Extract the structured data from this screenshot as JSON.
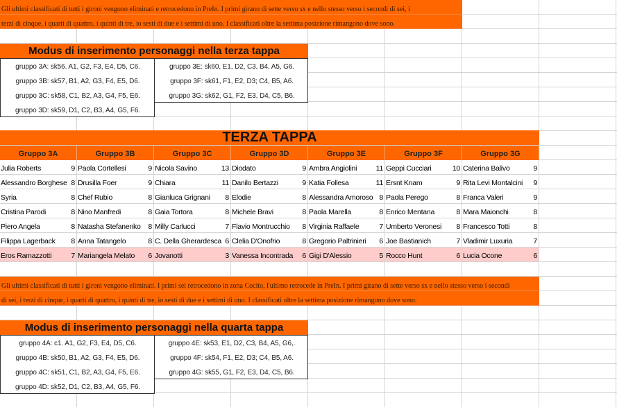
{
  "note1": [
    "Gli ultimi classificati di tutti i gironi vengono eliminati e retrocedono in PreIn. I primi girano di sette verso sx e nello stesso verso i secondi di sei, i",
    "terzi di cinque, i quarti di quattro, i quinti di tre, io sesti di due e i settimi di uno. I classificati oltre la settima posizione rimangono dove sono."
  ],
  "modus3": {
    "title": "Modus di inserimento personaggi nella terza tappa",
    "left": [
      "gruppo 3A: sk56. A1, G2, F3, E4, D5, C6.",
      "gruppo 3B: sk57, B1, A2, G3, F4, E5, D6.",
      "gruppo 3C: sk58, C1, B2, A3, G4, F5, E6.",
      "gruppo 3D: sk59, D1, C2, B3, A4, G5, F6."
    ],
    "right": [
      "gruppo 3E: sk60, E1, D2, C3, B4, A5, G6.",
      "gruppo 3F: sk61, F1, E2, D3; C4, B5, A6.",
      "gruppo 3G: sk62, G1, F2, E3, D4, C5, B6."
    ]
  },
  "terza": {
    "title": "TERZA TAPPA",
    "groups": [
      {
        "name": "Gruppo 3A",
        "rows": [
          [
            "Julia Roberts",
            "9"
          ],
          [
            "Alessandro Borghese",
            "8"
          ],
          [
            "Syria",
            "8"
          ],
          [
            "Cristina Parodi",
            "8"
          ],
          [
            "Piero Angela",
            "8"
          ],
          [
            "Filippa Lagerback",
            "8"
          ],
          [
            "Eros Ramazzotti",
            "7"
          ]
        ]
      },
      {
        "name": "Gruppo 3B",
        "rows": [
          [
            "Paola Cortellesi",
            "9"
          ],
          [
            "Drusilla Foer",
            "9"
          ],
          [
            "Chef Rubio",
            "8"
          ],
          [
            "Nino Manfredi",
            "8"
          ],
          [
            "Natasha Stefanenko",
            "8"
          ],
          [
            "Anna Tatangelo",
            "8"
          ],
          [
            "Mariangela Melato",
            "6"
          ]
        ]
      },
      {
        "name": "Gruppo 3C",
        "rows": [
          [
            "Nicola Savino",
            "13"
          ],
          [
            "Chiara",
            "11"
          ],
          [
            "Gianluca Grignani",
            "8"
          ],
          [
            "Gaia Tortora",
            "8"
          ],
          [
            "Milly Carlucci",
            "7"
          ],
          [
            "C. Della Gherardesca",
            "6"
          ],
          [
            "Jovanotti",
            "3"
          ]
        ]
      },
      {
        "name": "Gruppo 3D",
        "rows": [
          [
            "Diodato",
            "9"
          ],
          [
            "Danilo Bertazzi",
            "9"
          ],
          [
            "Elodie",
            "8"
          ],
          [
            "Michele Bravi",
            "8"
          ],
          [
            "Flavio Montrucchio",
            "8"
          ],
          [
            "Clelia D'Onofrio",
            "8"
          ],
          [
            "Vanessa Incontrada",
            "6"
          ]
        ]
      },
      {
        "name": "Gruppo 3E",
        "rows": [
          [
            "Ambra Angiolini",
            "11"
          ],
          [
            "Katia Follesa",
            "11"
          ],
          [
            "Alessandra Amoroso",
            "8"
          ],
          [
            "Paola Marella",
            "8"
          ],
          [
            "Virginia Raffaele",
            "7"
          ],
          [
            "Gregorio Paltrinieri",
            "6"
          ],
          [
            "Gigi D'Alessio",
            "5"
          ]
        ]
      },
      {
        "name": "Gruppo 3F",
        "rows": [
          [
            "Geppi Cucciari",
            "10"
          ],
          [
            "Ersnt Knam",
            "9"
          ],
          [
            "Paola Perego",
            "8"
          ],
          [
            "Enrico Mentana",
            "8"
          ],
          [
            "Umberto Veronesi",
            "8"
          ],
          [
            "Joe Bastianich",
            "7"
          ],
          [
            "Rocco Hunt",
            "6"
          ]
        ]
      },
      {
        "name": "Gruppo 3G",
        "rows": [
          [
            "Caterina Balivo",
            "9"
          ],
          [
            "Rita Levi Montalcini",
            "9"
          ],
          [
            "Franca Valeri",
            "9"
          ],
          [
            "Mara Maionchi",
            "8"
          ],
          [
            "Francesco Totti",
            "8"
          ],
          [
            "Vladimir Luxuria",
            "7"
          ],
          [
            "Lucia Ocone",
            "6"
          ]
        ]
      }
    ]
  },
  "note2": [
    "Gli ultimi classificati di tutti i gironi vengono eliminati. I primi sei retrocedono in zona Cocito, l'ultimo retrocede in PreIn. I primi girano di sette verso sx e nello stesso verso i secondi",
    "di sei, i terzi di cinque, i quarti di quattro, i quinti di tre, io sesti di due e i settimi di uno. I classificati oltre la settima posizione rimangono dove sono."
  ],
  "modus4": {
    "title": "Modus di inserimento personaggi nella quarta tappa",
    "left": [
      "gruppo 4A: c1. A1, G2, F3, E4, D5, C6.",
      "gruppo 4B: sk50, B1, A2, G3, F4, E5, D6.",
      "gruppo 4C: sk51, C1, B2, A3, G4, F5, E6.",
      "gruppo 4D: sk52, D1, C2, B3, A4, G5, F6."
    ],
    "right": [
      "gruppo 4E: sk53, E1, D2, C3, B4, A5, G6,.",
      "gruppo 4F: sk54, F1, E2, D3; C4, B5, A6.",
      "gruppo 4G: sk55, G1, F2, E3, D4, C5, B6."
    ]
  },
  "colors": {
    "accent": "#ff6600",
    "eliminated_row": "#ffcccc"
  }
}
